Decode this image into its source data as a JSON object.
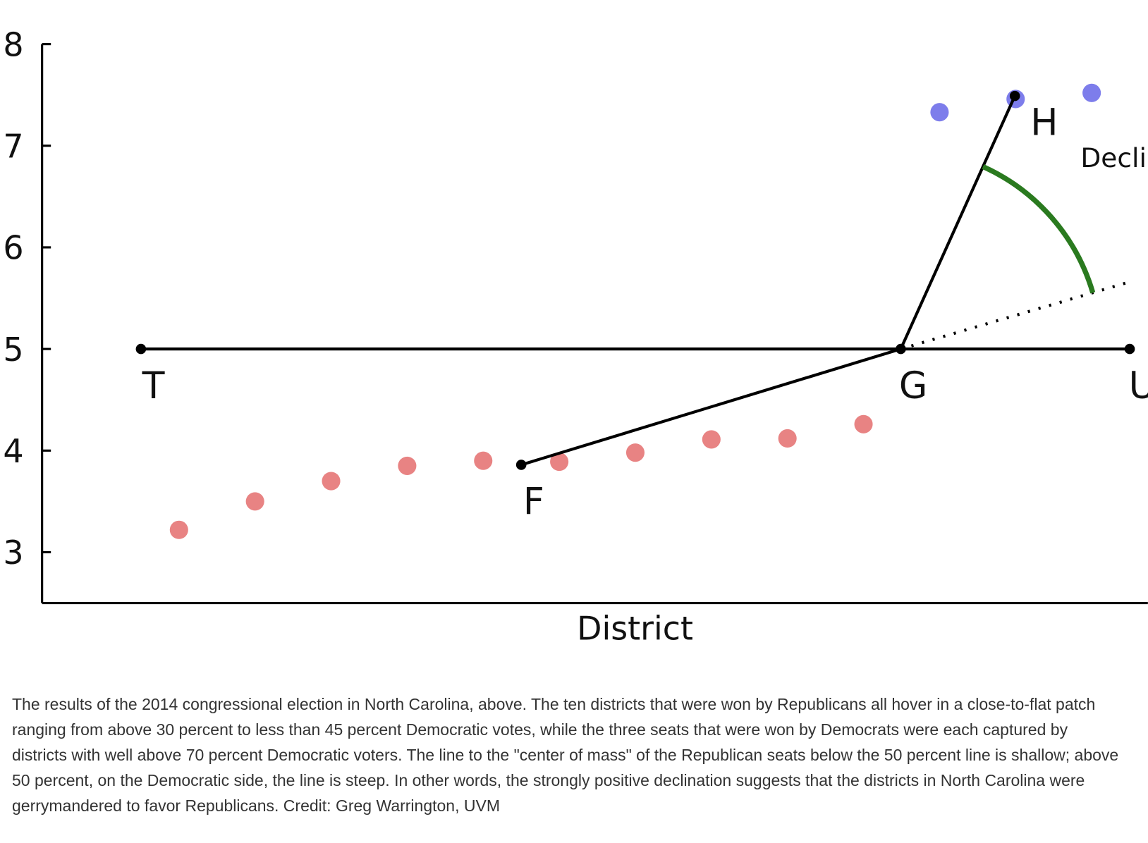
{
  "chart_data": {
    "type": "scatter",
    "x_label": "District",
    "xlim": [
      -0.8,
      13.7
    ],
    "ylim": [
      2.5,
      8
    ],
    "yticks": [
      3,
      4,
      5,
      6,
      7,
      8
    ],
    "series": [
      {
        "color": "#e88383",
        "x": [
          1,
          2,
          3,
          4,
          5,
          6,
          7,
          8,
          9,
          10
        ],
        "values": [
          3.22,
          3.5,
          3.7,
          3.85,
          3.9,
          3.89,
          3.98,
          4.11,
          4.12,
          4.26
        ]
      },
      {
        "color": "#7d7deb",
        "x": [
          11,
          12,
          13
        ],
        "values": [
          7.33,
          7.46,
          7.52
        ]
      }
    ],
    "lines": [
      {
        "color": "#000000",
        "style": "solid",
        "points": [
          {
            "label": "T",
            "x": 0.5,
            "y": 5,
            "label_position": "below"
          },
          {
            "label": "U",
            "x": 13.5,
            "y": 5,
            "label_position": "below"
          }
        ]
      },
      {
        "color": "#000000",
        "style": "solid",
        "points": [
          {
            "label": "F",
            "x": 5.5,
            "y": 3.86,
            "label_position": "below"
          },
          {
            "label": "G",
            "x": 10.49,
            "y": 5,
            "label_position": "below"
          },
          {
            "label": "H",
            "x": 11.99,
            "y": 7.49,
            "label_position": "right"
          }
        ]
      },
      {
        "color": "#000000",
        "style": "dotted",
        "points": [
          {
            "x": 10.49,
            "y": 5
          },
          {
            "x": 13.5,
            "y": 5.66
          }
        ]
      }
    ],
    "declination": {
      "text": "Declination",
      "color": "#2a7a1f"
    }
  },
  "caption": "The results of the 2014 congressional election in North Carolina, above. The ten districts that were won by Republicans all hover in a close-to-flat patch ranging from above 30 percent to less than 45 percent Democratic votes, while the three seats that were won by Democrats were each captured by districts with well above 70 percent Democratic voters. The line to the \"center of mass\" of the Republican seats below the 50 percent line is shallow; above 50 percent, on the Democratic side, the line is steep. In other words, the strongly positive declination suggests that the districts in North Carolina were gerrymandered to favor Republicans. Credit: Greg Warrington, UVM"
}
